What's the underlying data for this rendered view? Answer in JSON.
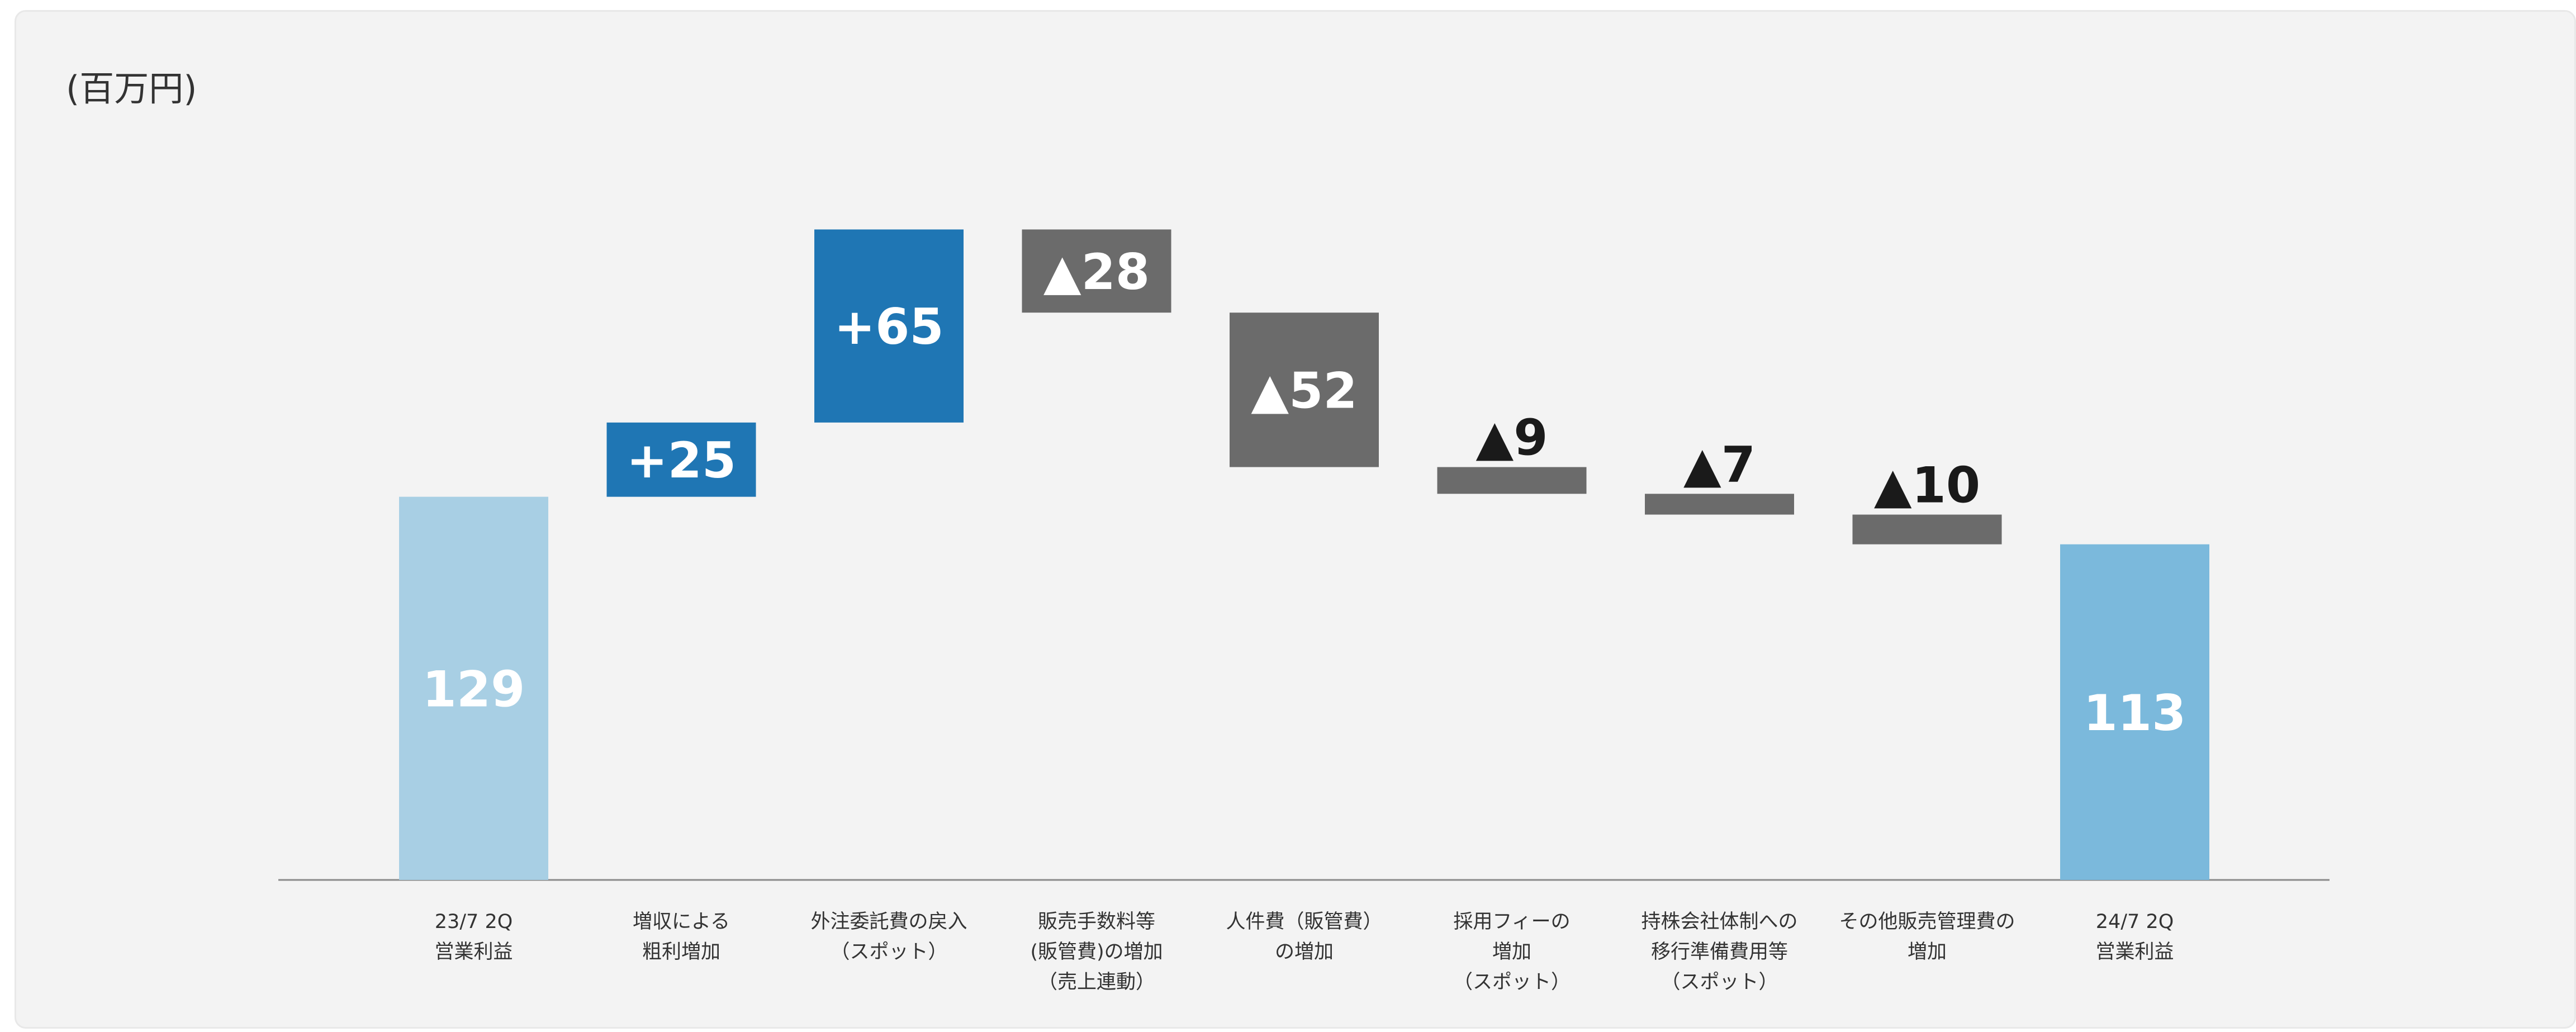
{
  "unit_label": "(百万円)",
  "chart_data": {
    "type": "waterfall",
    "ylim": [
      0,
      175
    ],
    "colors": {
      "start": "#a8cfe4",
      "end": "#7bb9dc",
      "increase": "#1f76b4",
      "decrease": "#6b6b6b",
      "axis": "#8a8a8a",
      "label_light": "#ffffff",
      "label_dark": "#1a1a1a"
    },
    "bars": [
      {
        "kind": "total",
        "value": 129,
        "label": "129",
        "category": [
          "23/7 2Q",
          "営業利益"
        ]
      },
      {
        "kind": "increase",
        "value": 25,
        "label": "+25",
        "category": [
          "増収による",
          "粗利増加"
        ]
      },
      {
        "kind": "increase",
        "value": 65,
        "label": "+65",
        "category": [
          "外注委託費の戻入",
          "（スポット）"
        ]
      },
      {
        "kind": "decrease",
        "value": 28,
        "label": "▲28",
        "category": [
          "販売手数料等",
          "(販管費)の増加",
          "（売上連動）"
        ]
      },
      {
        "kind": "decrease",
        "value": 52,
        "label": "▲52",
        "category": [
          "人件費（販管費）",
          "の増加"
        ]
      },
      {
        "kind": "decrease",
        "value": 9,
        "label": "▲9",
        "category": [
          "採用フィーの",
          "増加",
          "（スポット）"
        ]
      },
      {
        "kind": "decrease",
        "value": 7,
        "label": "▲7",
        "category": [
          "持株会社体制への",
          "移行準備費用等",
          "（スポット）"
        ]
      },
      {
        "kind": "decrease",
        "value": 10,
        "label": "▲10",
        "category": [
          "その他販売管理費の",
          "増加"
        ]
      },
      {
        "kind": "total",
        "value": 113,
        "label": "113",
        "category": [
          "24/7 2Q",
          "営業利益"
        ]
      }
    ]
  }
}
